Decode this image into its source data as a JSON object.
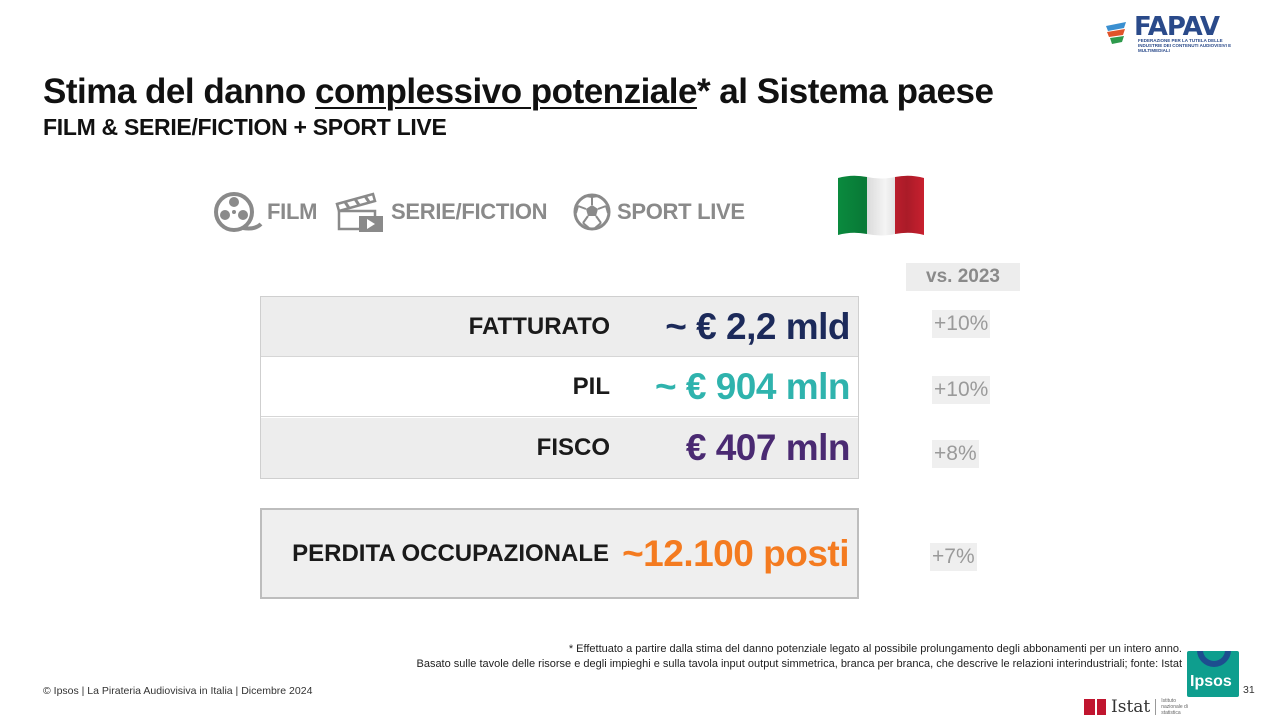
{
  "logo": {
    "name": "FAPAV",
    "tagline": "FEDERAZIONE PER LA TUTELA DELLE INDUSTRIE DEI CONTENUTI AUDIOVISIVI E MULTIMEDIALI"
  },
  "header": {
    "title_part1": "Stima del danno ",
    "title_underlined": "complessivo potenziale",
    "title_part2": "* al Sistema paese",
    "subtitle": "FILM & SERIE/FICTION + SPORT LIVE"
  },
  "categories": [
    {
      "label": "FILM",
      "icon": "film-reel-icon"
    },
    {
      "label": "SERIE/FICTION",
      "icon": "clapperboard-icon"
    },
    {
      "label": "SPORT LIVE",
      "icon": "soccer-ball-icon"
    }
  ],
  "flag": {
    "icon": "italy-flag-icon",
    "colors": [
      "#0a8a3e",
      "#f4f4f4",
      "#c8202f"
    ]
  },
  "comparison_header": "vs. 2023",
  "metrics": [
    {
      "label": "FATTURATO",
      "value": "~ € 2,2 mld",
      "color": "#1c2a5a",
      "change": "+10%"
    },
    {
      "label": "PIL",
      "value": "~ € 904 mln",
      "color": "#2fb3ad",
      "change": "+10%"
    },
    {
      "label": "FISCO",
      "value": "€ 407 mln",
      "color": "#4a2a72",
      "change": "+8%"
    }
  ],
  "employment": {
    "label": "PERDITA OCCUPAZIONALE",
    "value": "~12.100 posti",
    "color": "#f47b20",
    "change": "+7%"
  },
  "footnote": {
    "line1": "* Effettuato a partire dalla stima del danno potenziale legato al possibile prolungamento degli abbonamenti per un intero anno.",
    "line2": "Basato sulle tavole delle risorse e degli impieghi e sulla tavola input output simmetrica, branca per branca, che descrive le relazioni interindustriali; fonte: Istat"
  },
  "footer": {
    "copyright": "© Ipsos | La Pirateria Audiovisiva in Italia | Dicembre 2024",
    "page_number": "31",
    "ipsos_logo": "Ipsos",
    "istat_logo": "Istat",
    "istat_tag": "Istituto nazionale di statistica"
  }
}
